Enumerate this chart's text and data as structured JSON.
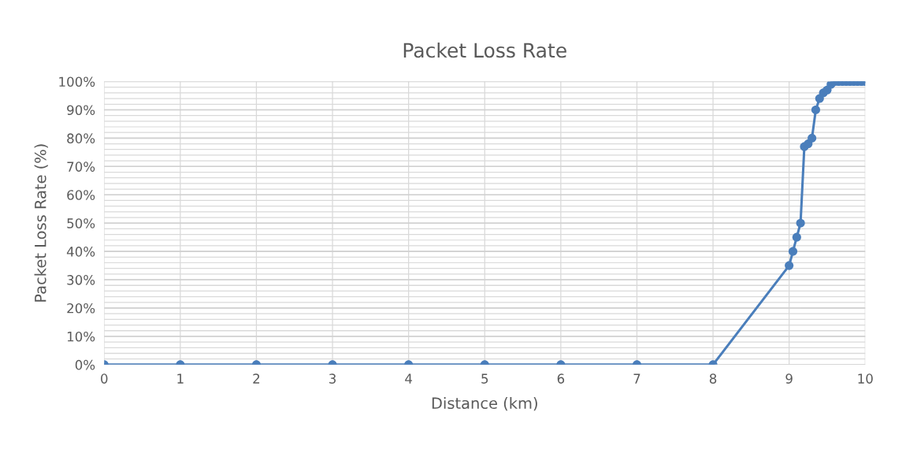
{
  "chart_data": {
    "type": "line",
    "title": "Packet Loss Rate",
    "xlabel": "Distance (km)",
    "ylabel": "Packet Loss Rate (%)",
    "x": [
      0,
      1,
      2,
      3,
      4,
      5,
      6,
      7,
      8,
      9.0,
      9.05,
      9.1,
      9.15,
      9.2,
      9.25,
      9.3,
      9.35,
      9.4,
      9.45,
      9.5,
      9.55,
      9.6,
      9.65,
      9.7,
      9.75,
      9.8,
      9.85,
      9.9,
      9.95,
      10
    ],
    "series": [
      {
        "color": "#4a7ebb",
        "values": [
          0,
          0,
          0,
          0,
          0,
          0,
          0,
          0,
          0,
          35,
          40,
          45,
          50,
          77,
          78,
          80,
          90,
          94,
          96,
          97,
          99,
          100,
          100,
          100,
          100,
          100,
          100,
          100,
          100,
          100
        ]
      }
    ],
    "marker": "circle",
    "line_style": "solid",
    "grid": true,
    "legend": false,
    "xlim": [
      0,
      10
    ],
    "xticks": [
      0,
      1,
      2,
      3,
      4,
      5,
      6,
      7,
      8,
      9,
      10
    ],
    "ylim": [
      0,
      100
    ],
    "yticks": [
      {
        "value": 0,
        "label": "0%"
      },
      {
        "value": 2,
        "label": null
      },
      {
        "value": 4,
        "label": null
      },
      {
        "value": 6,
        "label": null
      },
      {
        "value": 8,
        "label": null
      },
      {
        "value": 10,
        "label": "10%"
      },
      {
        "value": 12,
        "label": null
      },
      {
        "value": 14,
        "label": null
      },
      {
        "value": 16,
        "label": null
      },
      {
        "value": 18,
        "label": null
      },
      {
        "value": 20,
        "label": "20%"
      },
      {
        "value": 22,
        "label": null
      },
      {
        "value": 24,
        "label": null
      },
      {
        "value": 26,
        "label": null
      },
      {
        "value": 28,
        "label": null
      },
      {
        "value": 30,
        "label": "30%"
      },
      {
        "value": 32,
        "label": null
      },
      {
        "value": 34,
        "label": null
      },
      {
        "value": 36,
        "label": null
      },
      {
        "value": 38,
        "label": null
      },
      {
        "value": 40,
        "label": "40%"
      },
      {
        "value": 42,
        "label": null
      },
      {
        "value": 44,
        "label": null
      },
      {
        "value": 46,
        "label": null
      },
      {
        "value": 48,
        "label": null
      },
      {
        "value": 50,
        "label": "50%"
      },
      {
        "value": 52,
        "label": null
      },
      {
        "value": 54,
        "label": null
      },
      {
        "value": 56,
        "label": null
      },
      {
        "value": 58,
        "label": null
      },
      {
        "value": 60,
        "label": "60%"
      },
      {
        "value": 62,
        "label": null
      },
      {
        "value": 64,
        "label": null
      },
      {
        "value": 66,
        "label": null
      },
      {
        "value": 68,
        "label": null
      },
      {
        "value": 70,
        "label": "70%"
      },
      {
        "value": 72,
        "label": null
      },
      {
        "value": 74,
        "label": null
      },
      {
        "value": 76,
        "label": null
      },
      {
        "value": 78,
        "label": null
      },
      {
        "value": 80,
        "label": "80%"
      },
      {
        "value": 82,
        "label": null
      },
      {
        "value": 84,
        "label": null
      },
      {
        "value": 86,
        "label": null
      },
      {
        "value": 88,
        "label": null
      },
      {
        "value": 90,
        "label": "90%"
      },
      {
        "value": 92,
        "label": null
      },
      {
        "value": 94,
        "label": null
      },
      {
        "value": 96,
        "label": null
      },
      {
        "value": 98,
        "label": null
      },
      {
        "value": 100,
        "label": "100%"
      }
    ]
  }
}
